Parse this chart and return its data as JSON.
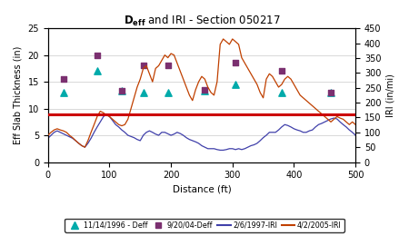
{
  "title": "D$_{eff}$ and IRI - Section 050217",
  "xlabel": "Distance (ft)",
  "ylabel_left": "Eff Slab Thickness (in)",
  "ylabel_right": "IRI (in/mi)",
  "xlim": [
    0,
    500
  ],
  "ylim_left": [
    0,
    25
  ],
  "ylim_right": [
    0,
    450
  ],
  "xticks": [
    0,
    100,
    200,
    300,
    400,
    500
  ],
  "yticks_left": [
    0,
    5,
    10,
    15,
    20,
    25
  ],
  "yticks_right": [
    0,
    50,
    100,
    150,
    200,
    250,
    300,
    350,
    400,
    450
  ],
  "deff_1996_x": [
    25,
    80,
    120,
    155,
    195,
    255,
    305,
    380,
    460
  ],
  "deff_1996_y": [
    13,
    17,
    13.3,
    13,
    13,
    13.3,
    14.5,
    13,
    13
  ],
  "deff_2004_x": [
    25,
    80,
    120,
    155,
    195,
    255,
    305,
    380,
    460
  ],
  "deff_2004_y": [
    15.5,
    20,
    13.3,
    18,
    18,
    13.5,
    18.5,
    17,
    13
  ],
  "iri_avg_last_inmi": 160,
  "iri_1997_x": [
    0,
    5,
    10,
    15,
    20,
    25,
    30,
    35,
    40,
    45,
    50,
    55,
    60,
    65,
    70,
    75,
    80,
    85,
    90,
    95,
    100,
    105,
    110,
    115,
    120,
    125,
    130,
    135,
    140,
    145,
    150,
    155,
    160,
    165,
    170,
    175,
    180,
    185,
    190,
    195,
    200,
    205,
    210,
    215,
    220,
    225,
    230,
    235,
    240,
    245,
    250,
    255,
    260,
    265,
    270,
    275,
    280,
    285,
    290,
    295,
    300,
    305,
    310,
    315,
    320,
    325,
    330,
    335,
    340,
    345,
    350,
    355,
    360,
    365,
    370,
    375,
    380,
    385,
    390,
    395,
    400,
    405,
    410,
    415,
    420,
    425,
    430,
    435,
    440,
    445,
    450,
    455,
    460,
    465,
    470,
    475,
    480,
    485,
    490,
    495,
    500
  ],
  "iri_1997_y": [
    80,
    90,
    100,
    105,
    100,
    95,
    90,
    85,
    80,
    72,
    63,
    55,
    50,
    63,
    80,
    100,
    118,
    135,
    152,
    162,
    153,
    140,
    126,
    118,
    108,
    100,
    90,
    86,
    82,
    76,
    72,
    90,
    100,
    105,
    100,
    94,
    90,
    100,
    100,
    95,
    90,
    94,
    100,
    96,
    90,
    82,
    76,
    72,
    68,
    63,
    55,
    50,
    45,
    45,
    45,
    42,
    40,
    40,
    42,
    45,
    45,
    42,
    45,
    42,
    45,
    50,
    55,
    58,
    63,
    72,
    82,
    90,
    100,
    100,
    100,
    108,
    118,
    126,
    123,
    118,
    112,
    108,
    105,
    100,
    100,
    105,
    108,
    118,
    126,
    130,
    135,
    140,
    145,
    148,
    145,
    135,
    126,
    118,
    108,
    100,
    90
  ],
  "iri_2005_x": [
    0,
    5,
    10,
    15,
    20,
    25,
    30,
    35,
    40,
    45,
    50,
    55,
    60,
    65,
    70,
    75,
    80,
    85,
    90,
    95,
    100,
    105,
    110,
    115,
    120,
    125,
    130,
    135,
    140,
    145,
    150,
    155,
    160,
    165,
    170,
    175,
    180,
    185,
    190,
    195,
    200,
    205,
    210,
    215,
    220,
    225,
    230,
    235,
    240,
    245,
    250,
    255,
    260,
    265,
    270,
    275,
    280,
    285,
    290,
    295,
    300,
    305,
    310,
    315,
    320,
    325,
    330,
    335,
    340,
    345,
    350,
    355,
    360,
    365,
    370,
    375,
    380,
    385,
    390,
    395,
    400,
    405,
    410,
    415,
    420,
    425,
    430,
    435,
    440,
    445,
    450,
    455,
    460,
    465,
    470,
    475,
    480,
    485,
    490,
    495,
    500
  ],
  "iri_2005_y": [
    90,
    100,
    108,
    112,
    108,
    105,
    100,
    90,
    82,
    72,
    63,
    55,
    50,
    72,
    100,
    126,
    153,
    171,
    166,
    158,
    153,
    144,
    135,
    126,
    122,
    126,
    144,
    180,
    216,
    252,
    279,
    315,
    324,
    297,
    270,
    315,
    324,
    342,
    360,
    351,
    365,
    360,
    333,
    306,
    279,
    252,
    225,
    207,
    243,
    270,
    288,
    279,
    252,
    234,
    225,
    270,
    396,
    414,
    405,
    396,
    414,
    405,
    396,
    351,
    333,
    315,
    297,
    279,
    261,
    234,
    216,
    279,
    297,
    288,
    270,
    252,
    261,
    279,
    288,
    279,
    261,
    243,
    225,
    216,
    207,
    198,
    189,
    180,
    171,
    162,
    153,
    144,
    135,
    144,
    153,
    148,
    144,
    135,
    126,
    135,
    126
  ],
  "color_deff_1996": "#00AAAA",
  "color_deff_2004": "#7B3070",
  "color_iri_1997": "#4040AA",
  "color_iri_2005": "#C04000",
  "color_avg_line": "#CC0000",
  "legend_labels": [
    "11/14/1996 - Deff",
    "9/20/04-Deff",
    "2/6/1997-IRI",
    "4/2/2005-IRI"
  ]
}
